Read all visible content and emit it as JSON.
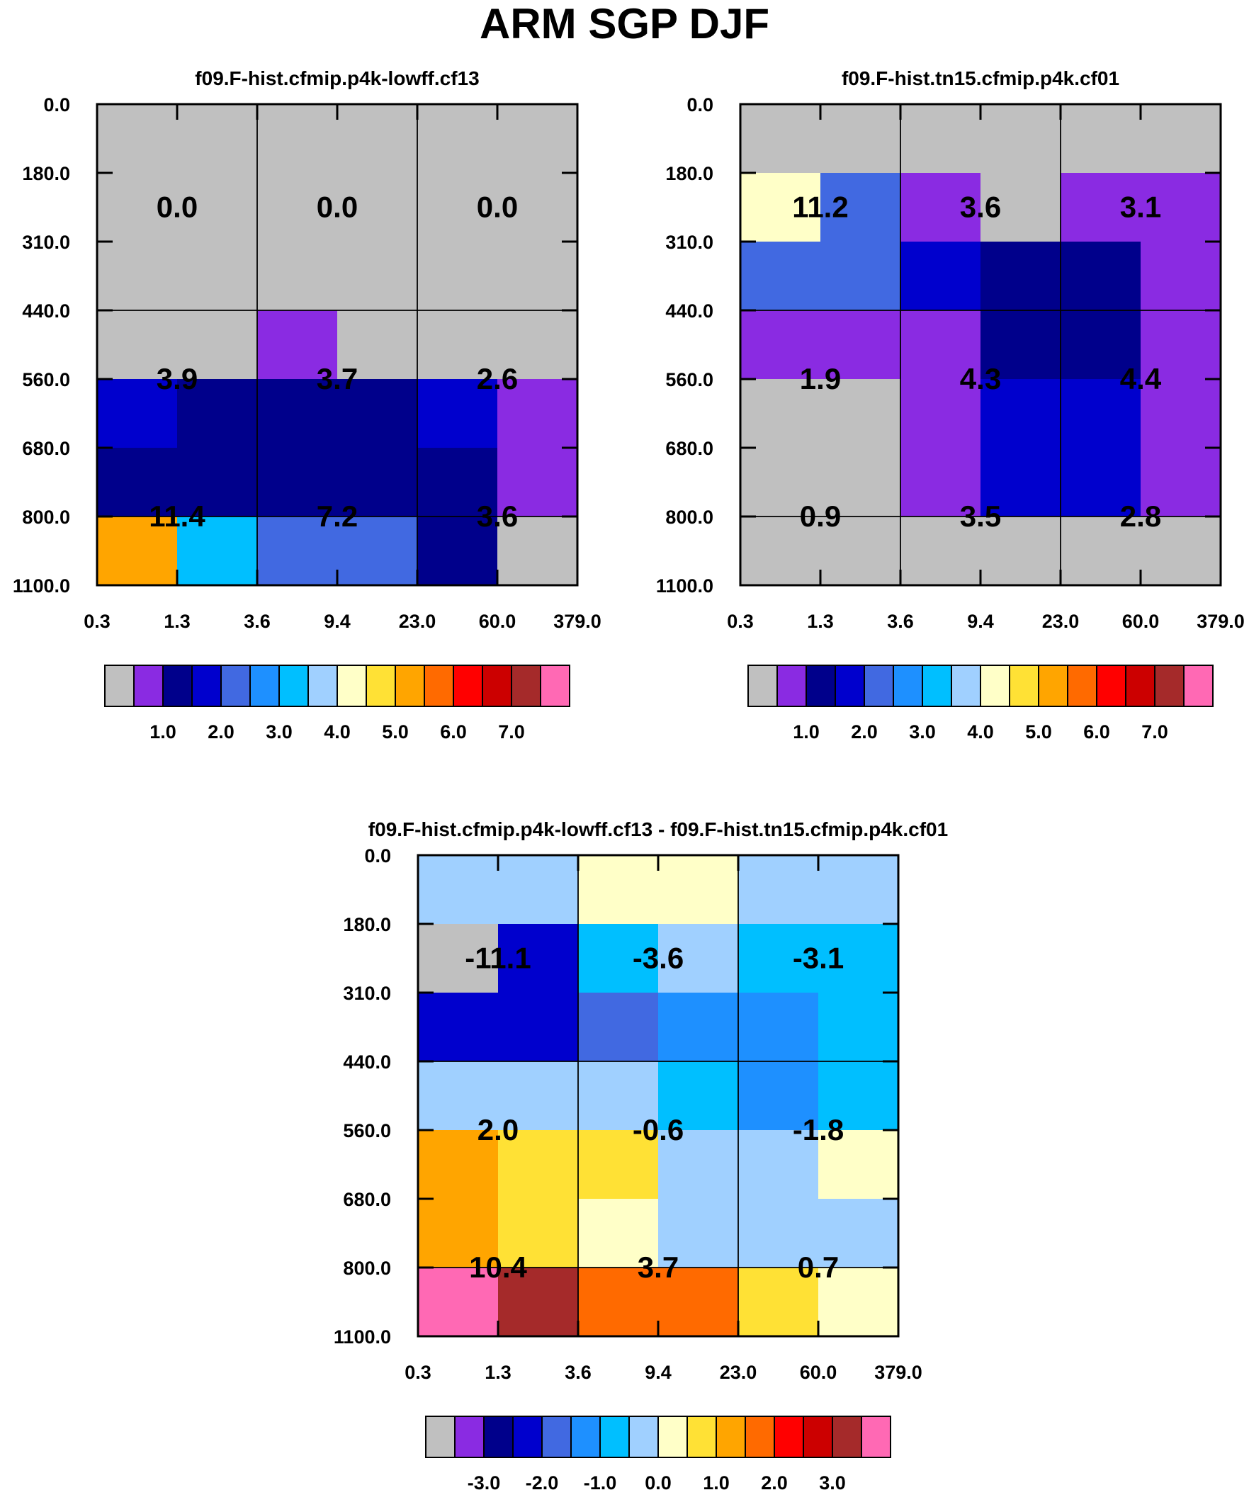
{
  "title": "ARM SGP DJF",
  "colors": {
    "scale": [
      "#c0c0c0",
      "#8a2be2",
      "#00008b",
      "#0000cd",
      "#4169e1",
      "#1e90ff",
      "#00bfff",
      "#a0d0ff",
      "#ffffc8",
      "#ffe135",
      "#ffa500",
      "#ff6a00",
      "#ff0000",
      "#cc0000",
      "#a52a2a",
      "#ff69b4"
    ]
  },
  "chart_data": [
    {
      "type": "heatmap",
      "title": "f09.F-hist.cfmip.p4k-lowff.cf13",
      "x_ticks": [
        "0.3",
        "1.3",
        "3.6",
        "9.4",
        "23.0",
        "60.0",
        "379.0"
      ],
      "y_ticks": [
        "0.0",
        "180.0",
        "310.0",
        "440.0",
        "560.0",
        "680.0",
        "800.0",
        "1100.0"
      ],
      "cell_colors": [
        [
          0,
          0,
          0,
          0,
          0,
          0
        ],
        [
          0,
          0,
          0,
          0,
          0,
          0
        ],
        [
          0,
          0,
          0,
          0,
          0,
          0
        ],
        [
          0,
          0,
          1,
          0,
          0,
          0
        ],
        [
          3,
          2,
          2,
          2,
          3,
          1
        ],
        [
          2,
          2,
          2,
          2,
          2,
          1
        ],
        [
          10,
          6,
          4,
          4,
          2,
          0
        ]
      ],
      "block_labels": [
        [
          "0.0",
          "0.0",
          "0.0"
        ],
        [
          "3.9",
          "3.7",
          "2.6"
        ],
        [
          "11.4",
          "7.2",
          "3.6"
        ]
      ],
      "colorbar_labels": [
        "1.0",
        "2.0",
        "3.0",
        "4.0",
        "5.0",
        "6.0",
        "7.0"
      ]
    },
    {
      "type": "heatmap",
      "title": "f09.F-hist.tn15.cfmip.p4k.cf01",
      "x_ticks": [
        "0.3",
        "1.3",
        "3.6",
        "9.4",
        "23.0",
        "60.0",
        "379.0"
      ],
      "y_ticks": [
        "0.0",
        "180.0",
        "310.0",
        "440.0",
        "560.0",
        "680.0",
        "800.0",
        "1100.0"
      ],
      "cell_colors": [
        [
          0,
          0,
          0,
          0,
          0,
          0
        ],
        [
          8,
          4,
          1,
          0,
          1,
          1
        ],
        [
          4,
          4,
          3,
          2,
          2,
          1
        ],
        [
          1,
          1,
          1,
          2,
          2,
          1
        ],
        [
          0,
          0,
          1,
          3,
          3,
          1
        ],
        [
          0,
          0,
          1,
          3,
          3,
          1
        ],
        [
          0,
          0,
          0,
          0,
          0,
          0
        ]
      ],
      "block_labels": [
        [
          "11.2",
          "3.6",
          "3.1"
        ],
        [
          "1.9",
          "4.3",
          "4.4"
        ],
        [
          "0.9",
          "3.5",
          "2.8"
        ]
      ],
      "colorbar_labels": [
        "1.0",
        "2.0",
        "3.0",
        "4.0",
        "5.0",
        "6.0",
        "7.0"
      ]
    },
    {
      "type": "heatmap",
      "title": "f09.F-hist.cfmip.p4k-lowff.cf13 - f09.F-hist.tn15.cfmip.p4k.cf01",
      "x_ticks": [
        "0.3",
        "1.3",
        "3.6",
        "9.4",
        "23.0",
        "60.0",
        "379.0"
      ],
      "y_ticks": [
        "0.0",
        "180.0",
        "310.0",
        "440.0",
        "560.0",
        "680.0",
        "800.0",
        "1100.0"
      ],
      "cell_colors": [
        [
          7,
          7,
          8,
          8,
          7,
          7
        ],
        [
          0,
          3,
          6,
          7,
          6,
          6
        ],
        [
          3,
          3,
          4,
          5,
          5,
          6
        ],
        [
          7,
          7,
          7,
          6,
          5,
          6
        ],
        [
          10,
          9,
          9,
          7,
          7,
          8
        ],
        [
          10,
          9,
          8,
          7,
          7,
          7
        ],
        [
          15,
          14,
          11,
          11,
          9,
          8
        ]
      ],
      "block_labels": [
        [
          "-11.1",
          "-3.6",
          "-3.1"
        ],
        [
          "2.0",
          "-0.6",
          "-1.8"
        ],
        [
          "10.4",
          "3.7",
          "0.7"
        ]
      ],
      "colorbar_labels": [
        "-3.0",
        "-2.0",
        "-1.0",
        "0.0",
        "1.0",
        "2.0",
        "3.0"
      ]
    }
  ]
}
